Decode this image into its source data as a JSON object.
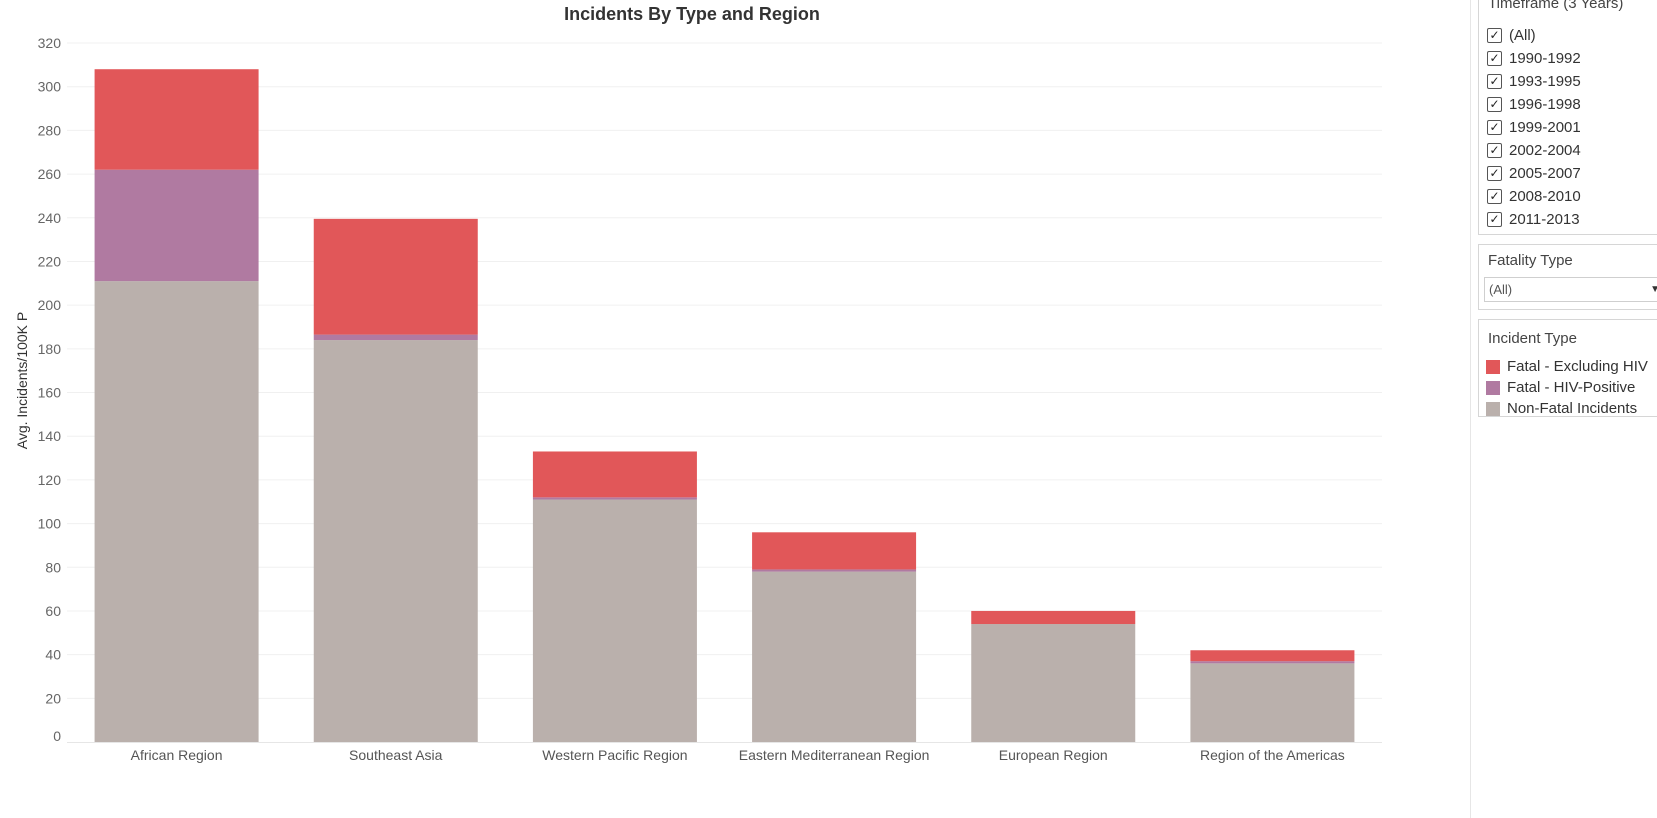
{
  "chart_data": {
    "type": "bar",
    "stacked": true,
    "title": "Incidents By Type and Region",
    "xlabel": "",
    "ylabel": "Avg. Incidents/100K P",
    "ylim": [
      0,
      320
    ],
    "yticks": [
      0,
      20,
      40,
      60,
      80,
      100,
      120,
      140,
      160,
      180,
      200,
      220,
      240,
      260,
      280,
      300,
      320
    ],
    "grid": true,
    "categories": [
      "African Region",
      "Southeast Asia",
      "Western Pacific Region",
      "Eastern Mediterranean Region",
      "European Region",
      "Region of the Americas"
    ],
    "series": [
      {
        "name": "Non-Fatal Incidents",
        "color": "#bab0ac",
        "values": [
          211,
          184,
          111,
          78,
          54,
          36
        ]
      },
      {
        "name": "Fatal - HIV-Positive",
        "color": "#b07aa1",
        "values": [
          51,
          2.5,
          1,
          1,
          0,
          1
        ]
      },
      {
        "name": "Fatal - Excluding HIV",
        "color": "#e15759",
        "values": [
          46,
          53,
          21,
          17,
          6,
          5
        ]
      }
    ]
  },
  "filters": {
    "timeframe": {
      "title": "Timeframe (3 Years)",
      "options": [
        {
          "label": "(All)",
          "checked": true
        },
        {
          "label": "1990-1992",
          "checked": true
        },
        {
          "label": "1993-1995",
          "checked": true
        },
        {
          "label": "1996-1998",
          "checked": true
        },
        {
          "label": "1999-2001",
          "checked": true
        },
        {
          "label": "2002-2004",
          "checked": true
        },
        {
          "label": "2005-2007",
          "checked": true
        },
        {
          "label": "2008-2010",
          "checked": true
        },
        {
          "label": "2011-2013",
          "checked": true
        }
      ]
    },
    "fatality_type": {
      "title": "Fatality Type",
      "value": "(All)"
    }
  },
  "legend": {
    "title": "Incident Type",
    "items": [
      {
        "label": "Fatal - Excluding HIV",
        "color": "#e15759"
      },
      {
        "label": "Fatal - HIV-Positive",
        "color": "#b07aa1"
      },
      {
        "label": "Non-Fatal Incidents",
        "color": "#bab0ac"
      }
    ]
  },
  "icons": {
    "checkbox": "check-icon",
    "dropdown": "chevron-down-icon"
  }
}
